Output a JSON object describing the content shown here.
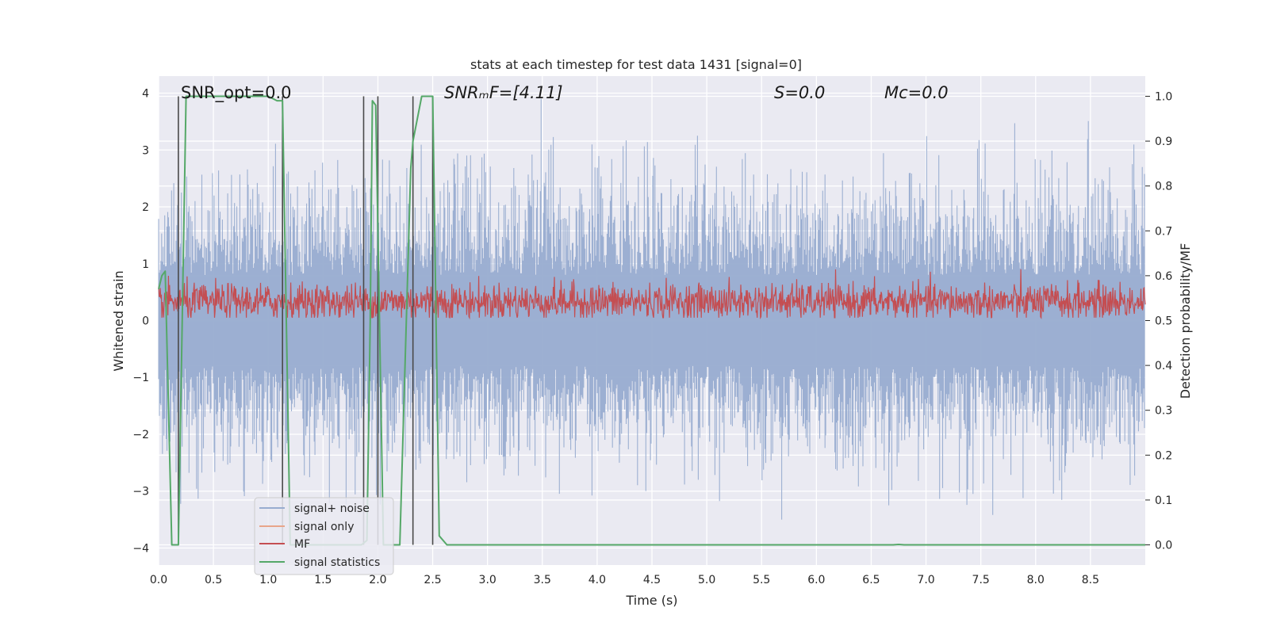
{
  "chart_data": {
    "type": "line",
    "title": "stats at each timestep for test data 1431 [signal=0]",
    "xlabel": "Time (s)",
    "ylabel_left": "Whitened strain",
    "ylabel_right": "Detection probability/MF",
    "xlim": [
      0.0,
      9.0
    ],
    "ylim_left": [
      -4.3,
      4.3
    ],
    "ylim_right": [
      -0.045,
      1.045
    ],
    "xticks": [
      "0.0",
      "0.5",
      "1.0",
      "1.5",
      "2.0",
      "2.5",
      "3.0",
      "3.5",
      "4.0",
      "4.5",
      "5.0",
      "5.5",
      "6.0",
      "6.5",
      "7.0",
      "7.5",
      "8.0",
      "8.5"
    ],
    "yticks_left": [
      "−4",
      "−3",
      "−2",
      "−1",
      "0",
      "1",
      "2",
      "3",
      "4"
    ],
    "yticks_right": [
      "0.0",
      "0.1",
      "0.2",
      "0.3",
      "0.4",
      "0.5",
      "0.6",
      "0.7",
      "0.8",
      "0.9",
      "1.0"
    ],
    "grid": true,
    "legend_position": "lower-left",
    "annotations": [
      {
        "text": "SNR_opt=0.0",
        "x": 0.19,
        "y": 4.0
      },
      {
        "text": "SNRₘF=[4.11]",
        "x": 2.6,
        "y": 4.0
      },
      {
        "text": "S=0.0",
        "x": 5.6,
        "y": 4.0
      },
      {
        "text": "Mc=0.0",
        "x": 6.6,
        "y": 4.0
      }
    ],
    "series": [
      {
        "name": "signal+ noise",
        "color": "#98acd0",
        "axis": "left",
        "description_envelope": {
          "low": -3.5,
          "high": 3.9
        }
      },
      {
        "name": "signal only",
        "color": "#e8a58a",
        "axis": "left"
      },
      {
        "name": "MF",
        "color": "#c44e52",
        "axis": "left",
        "description_envelope": {
          "low": 0.05,
          "high": 0.95
        }
      },
      {
        "name": "signal statistics",
        "color": "#55a868",
        "axis": "right",
        "x": [
          0.0,
          0.03,
          0.06,
          0.12,
          0.18,
          0.25,
          0.3,
          1.0,
          1.08,
          1.13,
          1.2,
          1.85,
          1.9,
          1.93,
          1.95,
          1.98,
          2.05,
          2.1,
          2.2,
          2.3,
          2.32,
          2.4,
          2.5,
          2.56,
          2.63,
          2.7,
          6.7,
          6.75,
          6.8,
          9.0
        ],
        "y": [
          0.57,
          0.6,
          0.61,
          0.0,
          0.0,
          1.0,
          1.0,
          1.0,
          0.99,
          0.99,
          0.0,
          0.0,
          0.01,
          0.5,
          0.99,
          0.98,
          0.0,
          0.0,
          0.0,
          0.84,
          0.9,
          1.0,
          1.0,
          0.02,
          0.0,
          0.0,
          0.0,
          0.001,
          0.0,
          0.0
        ]
      }
    ],
    "vertical_lines_x": [
      0.18,
      1.13,
      1.87,
      2.0,
      2.32,
      2.5
    ]
  },
  "legend": {
    "items": [
      {
        "label": "signal+ noise",
        "color": "#98acd0"
      },
      {
        "label": "signal only",
        "color": "#e8a58a"
      },
      {
        "label": "MF",
        "color": "#c44e52"
      },
      {
        "label": "signal statistics",
        "color": "#55a868"
      }
    ]
  },
  "colors": {
    "axes_bg": "#eaeaf2",
    "grid": "#ffffff",
    "vline": "#4a4a4a"
  }
}
